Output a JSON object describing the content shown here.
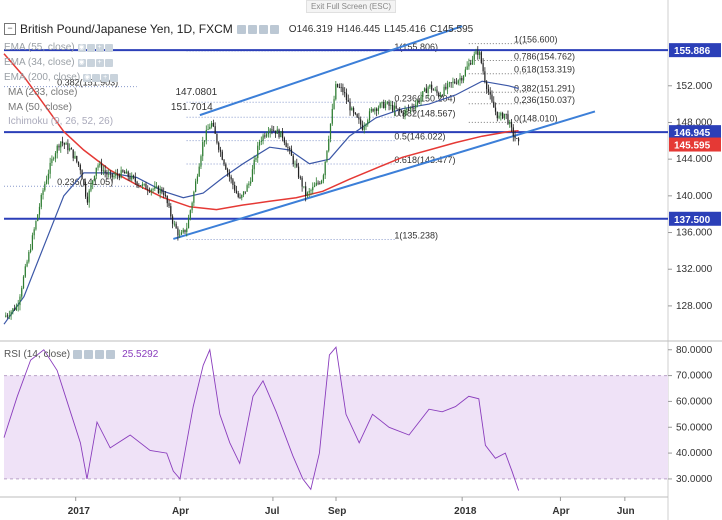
{
  "fullscreen": {
    "exit_label": "Exit Full Screen (ESC)"
  },
  "header": {
    "title": "British Pound/Japanese Yen, 1D, FXCM",
    "ohlc": {
      "o": "O146.319",
      "h": "H146.445",
      "l": "L145.416",
      "c": "C145.595"
    }
  },
  "indicators": [
    {
      "label": "EMA (55, close)",
      "value": ""
    },
    {
      "label": "EMA (34, close)",
      "value": ""
    },
    {
      "label": "EMA (200, close)",
      "value": ""
    },
    {
      "label": "MA (233, close)",
      "value": "147.0801"
    },
    {
      "label": "MA (50, close)",
      "value": "151.7014"
    },
    {
      "label": "Ichimoku (9, 26, 52, 26)",
      "value": ""
    }
  ],
  "rsi_panel": {
    "label": "RSI (14, close)",
    "value": "25.5292"
  },
  "colors": {
    "ma233": "#e53935",
    "ma50": "#3b57a7",
    "trend": "#3c7fd8",
    "level": "#2b3fb8",
    "price_up": "#2e7d32",
    "price_dn": "#222222",
    "rsi_line": "#8a3dbd",
    "rsi_band": "#efe2f7"
  },
  "chart_data": [
    {
      "type": "candlestick",
      "name": "GBP/JPY daily",
      "x_axis": {
        "ticks": [
          "2017",
          "Apr",
          "Jul",
          "Sep",
          "2018",
          "Apr",
          "Jun"
        ]
      },
      "y_axis": {
        "ticks": [
          "128.000",
          "132.000",
          "136.000",
          "140.000",
          "144.000",
          "148.000",
          "152.000"
        ],
        "ylim": [
          124.5,
          159.5
        ]
      },
      "price_path": [
        {
          "t": 0.0,
          "p": 126.8
        },
        {
          "t": 0.02,
          "p": 128.0
        },
        {
          "t": 0.04,
          "p": 134.5
        },
        {
          "t": 0.06,
          "p": 141.0
        },
        {
          "t": 0.075,
          "p": 144.5
        },
        {
          "t": 0.085,
          "p": 146.0
        },
        {
          "t": 0.1,
          "p": 145.0
        },
        {
          "t": 0.115,
          "p": 143.0
        },
        {
          "t": 0.125,
          "p": 139.5
        },
        {
          "t": 0.14,
          "p": 143.5
        },
        {
          "t": 0.16,
          "p": 142.0
        },
        {
          "t": 0.18,
          "p": 142.5
        },
        {
          "t": 0.21,
          "p": 141.0
        },
        {
          "t": 0.24,
          "p": 140.5
        },
        {
          "t": 0.255,
          "p": 137.0
        },
        {
          "t": 0.265,
          "p": 135.5
        },
        {
          "t": 0.275,
          "p": 136.5
        },
        {
          "t": 0.285,
          "p": 140.0
        },
        {
          "t": 0.3,
          "p": 146.0
        },
        {
          "t": 0.312,
          "p": 148.0
        },
        {
          "t": 0.325,
          "p": 145.0
        },
        {
          "t": 0.34,
          "p": 142.0
        },
        {
          "t": 0.355,
          "p": 139.5
        },
        {
          "t": 0.37,
          "p": 141.5
        },
        {
          "t": 0.385,
          "p": 146.0
        },
        {
          "t": 0.4,
          "p": 147.5
        },
        {
          "t": 0.42,
          "p": 146.5
        },
        {
          "t": 0.44,
          "p": 143.0
        },
        {
          "t": 0.455,
          "p": 140.0
        },
        {
          "t": 0.468,
          "p": 141.0
        },
        {
          "t": 0.48,
          "p": 142.0
        },
        {
          "t": 0.49,
          "p": 147.0
        },
        {
          "t": 0.5,
          "p": 152.0
        },
        {
          "t": 0.51,
          "p": 151.5
        },
        {
          "t": 0.525,
          "p": 149.0
        },
        {
          "t": 0.54,
          "p": 147.5
        },
        {
          "t": 0.555,
          "p": 149.5
        },
        {
          "t": 0.575,
          "p": 150.0
        },
        {
          "t": 0.6,
          "p": 149.0
        },
        {
          "t": 0.62,
          "p": 150.0
        },
        {
          "t": 0.64,
          "p": 152.0
        },
        {
          "t": 0.655,
          "p": 151.0
        },
        {
          "t": 0.67,
          "p": 152.0
        },
        {
          "t": 0.69,
          "p": 153.0
        },
        {
          "t": 0.705,
          "p": 155.0
        },
        {
          "t": 0.715,
          "p": 155.8
        },
        {
          "t": 0.725,
          "p": 152.5
        },
        {
          "t": 0.735,
          "p": 150.0
        },
        {
          "t": 0.745,
          "p": 148.5
        },
        {
          "t": 0.755,
          "p": 149.0
        },
        {
          "t": 0.765,
          "p": 147.0
        },
        {
          "t": 0.775,
          "p": 145.6
        }
      ],
      "ma233_path": [
        {
          "t": 0.0,
          "p": 155.5
        },
        {
          "t": 0.03,
          "p": 153.0
        },
        {
          "t": 0.06,
          "p": 150.0
        },
        {
          "t": 0.09,
          "p": 147.0
        },
        {
          "t": 0.12,
          "p": 145.0
        },
        {
          "t": 0.16,
          "p": 142.8
        },
        {
          "t": 0.2,
          "p": 141.2
        },
        {
          "t": 0.24,
          "p": 139.8
        },
        {
          "t": 0.28,
          "p": 138.8
        },
        {
          "t": 0.32,
          "p": 138.5
        },
        {
          "t": 0.36,
          "p": 139.0
        },
        {
          "t": 0.4,
          "p": 139.4
        },
        {
          "t": 0.44,
          "p": 139.8
        },
        {
          "t": 0.48,
          "p": 140.5
        },
        {
          "t": 0.52,
          "p": 141.8
        },
        {
          "t": 0.56,
          "p": 143.0
        },
        {
          "t": 0.6,
          "p": 144.2
        },
        {
          "t": 0.64,
          "p": 145.0
        },
        {
          "t": 0.68,
          "p": 145.8
        },
        {
          "t": 0.72,
          "p": 146.5
        },
        {
          "t": 0.76,
          "p": 147.0
        },
        {
          "t": 0.775,
          "p": 147.1
        }
      ],
      "ma50_path": [
        {
          "t": 0.0,
          "p": 126.0
        },
        {
          "t": 0.03,
          "p": 129.0
        },
        {
          "t": 0.06,
          "p": 134.5
        },
        {
          "t": 0.09,
          "p": 140.0
        },
        {
          "t": 0.12,
          "p": 142.5
        },
        {
          "t": 0.16,
          "p": 142.5
        },
        {
          "t": 0.2,
          "p": 142.0
        },
        {
          "t": 0.24,
          "p": 140.5
        },
        {
          "t": 0.27,
          "p": 139.8
        },
        {
          "t": 0.3,
          "p": 140.3
        },
        {
          "t": 0.33,
          "p": 142.0
        },
        {
          "t": 0.36,
          "p": 143.5
        },
        {
          "t": 0.4,
          "p": 145.3
        },
        {
          "t": 0.43,
          "p": 145.0
        },
        {
          "t": 0.46,
          "p": 143.5
        },
        {
          "t": 0.49,
          "p": 144.0
        },
        {
          "t": 0.52,
          "p": 146.5
        },
        {
          "t": 0.56,
          "p": 148.5
        },
        {
          "t": 0.6,
          "p": 149.5
        },
        {
          "t": 0.64,
          "p": 150.0
        },
        {
          "t": 0.68,
          "p": 151.0
        },
        {
          "t": 0.72,
          "p": 152.5
        },
        {
          "t": 0.76,
          "p": 152.0
        },
        {
          "t": 0.775,
          "p": 151.7
        }
      ],
      "trend_lines": [
        {
          "from": {
            "t": 0.255,
            "p": 135.3
          },
          "to": {
            "t": 0.89,
            "p": 149.2
          }
        },
        {
          "from": {
            "t": 0.295,
            "p": 148.8
          },
          "to": {
            "t": 0.69,
            "p": 158.5
          }
        }
      ],
      "fib_levels": [
        {
          "value": 156.6,
          "label": "1(156.600)"
        },
        {
          "value": 154.762,
          "label": "0.786(154.762)"
        },
        {
          "value": 153.319,
          "label": "0.618(153.319)"
        },
        {
          "value": 151.291,
          "label": "0.382(151.291)"
        },
        {
          "value": 150.037,
          "label": "0.236(150.037)"
        },
        {
          "value": 148.01,
          "label": "0(148.010)"
        }
      ],
      "fib_levels_2": [
        {
          "value": 155.806,
          "label": "1(155.806)"
        },
        {
          "value": 150.2,
          "label": "0.236(150.204)"
        },
        {
          "value": 148.567,
          "label": "0.382(148.567)"
        },
        {
          "value": 146.022,
          "label": "0.5(146.022)"
        },
        {
          "value": 143.477,
          "label": "0.618(143.477)"
        },
        {
          "value": 135.238,
          "label": "1(135.238)"
        }
      ],
      "fib_levels_3": [
        {
          "value": 151.903,
          "label": "0.382(151.903)"
        },
        {
          "value": 141.05,
          "label": "0.236(141.05)"
        }
      ],
      "horizontal_levels": [
        {
          "value": 155.886,
          "label": "155.886",
          "bg": "#2b3fb8"
        },
        {
          "value": 146.945,
          "label": "146.945",
          "bg": "#2b3fb8"
        },
        {
          "value": 137.5,
          "label": "137.500",
          "bg": "#2b3fb8"
        }
      ],
      "last_price": {
        "value": 145.595,
        "label": "145.595",
        "bg": "#e53935"
      }
    },
    {
      "type": "line",
      "name": "RSI (14, close)",
      "y_axis": {
        "ticks": [
          "30.0000",
          "40.0000",
          "50.0000",
          "60.0000",
          "70.0000",
          "80.0000"
        ],
        "ylim": [
          23,
          83
        ]
      },
      "band": [
        30,
        70
      ],
      "rsi_path": [
        {
          "t": 0.0,
          "v": 46
        },
        {
          "t": 0.02,
          "v": 62
        },
        {
          "t": 0.04,
          "v": 76
        },
        {
          "t": 0.06,
          "v": 80
        },
        {
          "t": 0.08,
          "v": 72
        },
        {
          "t": 0.1,
          "v": 56
        },
        {
          "t": 0.115,
          "v": 44
        },
        {
          "t": 0.125,
          "v": 30
        },
        {
          "t": 0.14,
          "v": 52
        },
        {
          "t": 0.16,
          "v": 42
        },
        {
          "t": 0.19,
          "v": 47
        },
        {
          "t": 0.22,
          "v": 41
        },
        {
          "t": 0.245,
          "v": 40
        },
        {
          "t": 0.255,
          "v": 33
        },
        {
          "t": 0.265,
          "v": 30
        },
        {
          "t": 0.285,
          "v": 58
        },
        {
          "t": 0.3,
          "v": 74
        },
        {
          "t": 0.31,
          "v": 80
        },
        {
          "t": 0.325,
          "v": 55
        },
        {
          "t": 0.34,
          "v": 44
        },
        {
          "t": 0.355,
          "v": 36
        },
        {
          "t": 0.375,
          "v": 62
        },
        {
          "t": 0.39,
          "v": 68
        },
        {
          "t": 0.41,
          "v": 56
        },
        {
          "t": 0.435,
          "v": 39
        },
        {
          "t": 0.45,
          "v": 30
        },
        {
          "t": 0.462,
          "v": 26
        },
        {
          "t": 0.475,
          "v": 40
        },
        {
          "t": 0.49,
          "v": 78
        },
        {
          "t": 0.5,
          "v": 81
        },
        {
          "t": 0.515,
          "v": 55
        },
        {
          "t": 0.535,
          "v": 44
        },
        {
          "t": 0.555,
          "v": 55
        },
        {
          "t": 0.58,
          "v": 50
        },
        {
          "t": 0.61,
          "v": 47
        },
        {
          "t": 0.64,
          "v": 57
        },
        {
          "t": 0.66,
          "v": 56
        },
        {
          "t": 0.68,
          "v": 58
        },
        {
          "t": 0.7,
          "v": 62
        },
        {
          "t": 0.715,
          "v": 61
        },
        {
          "t": 0.725,
          "v": 43
        },
        {
          "t": 0.74,
          "v": 38
        },
        {
          "t": 0.755,
          "v": 40
        },
        {
          "t": 0.765,
          "v": 33
        },
        {
          "t": 0.775,
          "v": 25.5
        }
      ]
    }
  ]
}
